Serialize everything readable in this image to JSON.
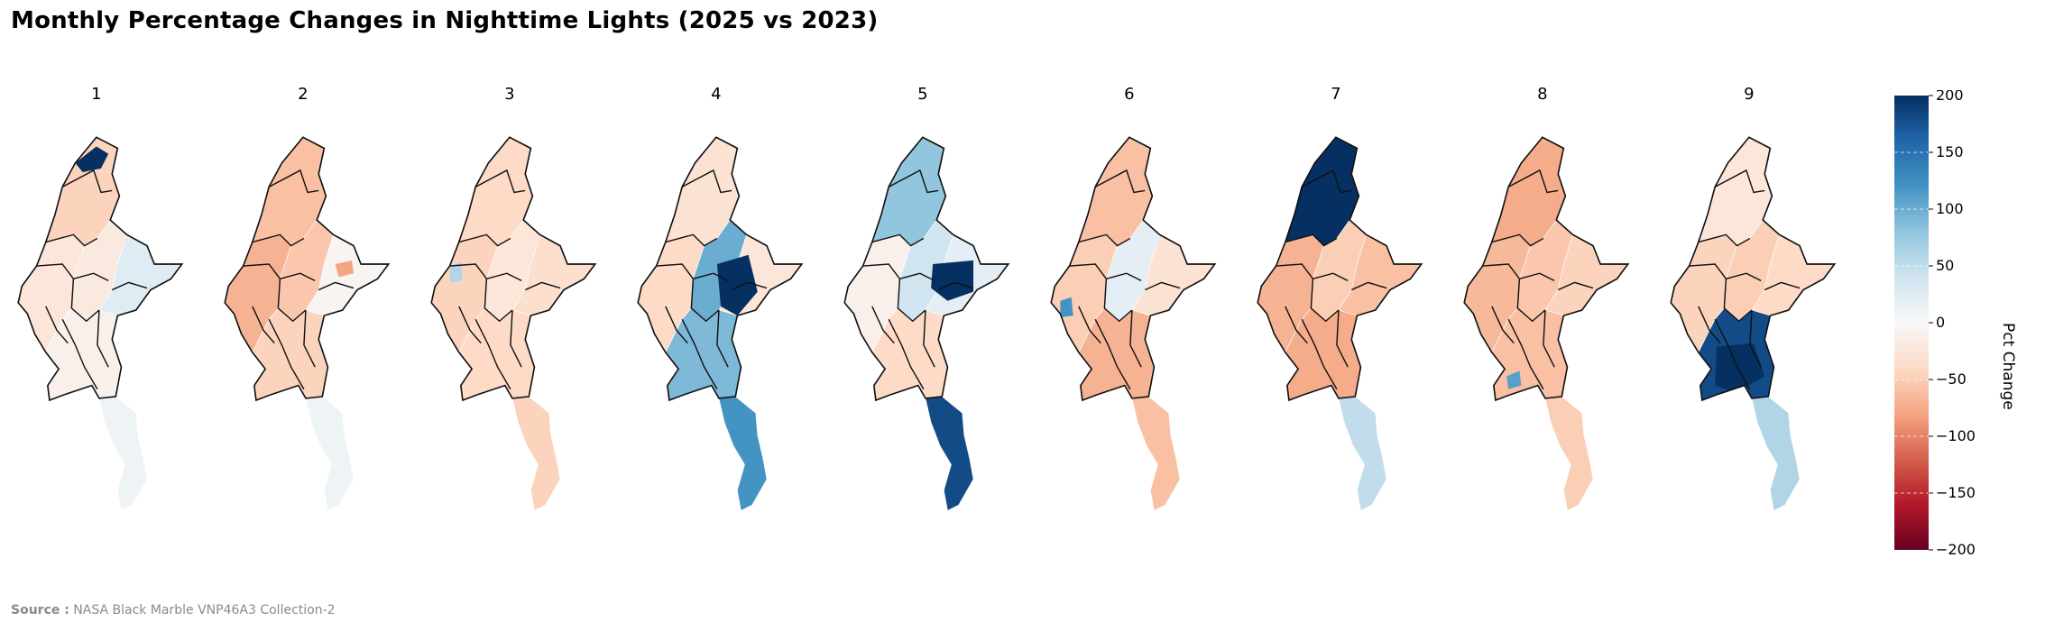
{
  "title": "Monthly Percentage Changes in Nighttime Lights (2025 vs 2023)",
  "chart_data": {
    "type": "choropleth-map",
    "region": "Myanmar",
    "panels": [
      {
        "label": "1",
        "north": -45,
        "west": -25,
        "center": -20,
        "east": 25,
        "south": -10,
        "far_south": 10,
        "accent": 200
      },
      {
        "label": "2",
        "north": -60,
        "west": -70,
        "center": -55,
        "east": -5,
        "south": -45,
        "far_south": 10,
        "accent": -80
      },
      {
        "label": "3",
        "north": -40,
        "west": -45,
        "center": -25,
        "east": -35,
        "south": -40,
        "far_south": -45,
        "accent": 60
      },
      {
        "label": "4",
        "north": -30,
        "west": -40,
        "center": 100,
        "east": -25,
        "south": 90,
        "far_south": 120,
        "accent": 200
      },
      {
        "label": "5",
        "north": 80,
        "west": -10,
        "center": 40,
        "east": 20,
        "south": -40,
        "far_south": 180,
        "accent": 200
      },
      {
        "label": "6",
        "north": -60,
        "west": -50,
        "center": 20,
        "east": -30,
        "south": -70,
        "far_south": -60,
        "accent": 120
      },
      {
        "label": "7",
        "north": 200,
        "west": -70,
        "center": -50,
        "east": -60,
        "south": -75,
        "far_south": 50,
        "accent": 200
      },
      {
        "label": "8",
        "north": -75,
        "west": -65,
        "center": -55,
        "east": -45,
        "south": -60,
        "far_south": -50,
        "accent": 110
      },
      {
        "label": "9",
        "north": -25,
        "west": -45,
        "center": -50,
        "east": -40,
        "south": 180,
        "far_south": 60,
        "accent": 200
      }
    ],
    "colorbar": {
      "label": "Pct Change",
      "vmin": -200,
      "vmax": 200,
      "ticks": [
        200,
        150,
        100,
        50,
        0,
        -50,
        -100,
        -150,
        -200
      ],
      "tick_labels": [
        "200",
        "150",
        "100",
        "50",
        "0",
        "−50",
        "−100",
        "−150",
        "−200"
      ],
      "colormap": "RdBu"
    }
  },
  "source": {
    "label": "Source :",
    "text": "NASA Black Marble VNP46A3 Collection-2"
  }
}
